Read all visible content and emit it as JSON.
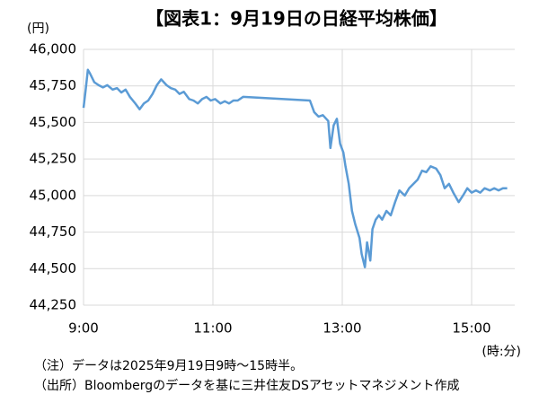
{
  "chart_data": {
    "type": "line",
    "title": "【図表1：9月19日の日経平均株価】",
    "y_unit": "(円)",
    "x_label": "(時:分)",
    "notes": [
      "（注）データは2025年9月19日9時～15時半。",
      "（出所）Bloombergのデータを基に三井住友DSアセットマネジメント作成"
    ],
    "x": [
      540,
      542,
      544,
      546,
      550,
      554,
      558,
      562,
      567,
      571,
      575,
      579,
      583,
      588,
      592,
      596,
      600,
      604,
      608,
      612,
      617,
      621,
      625,
      629,
      633,
      638,
      642,
      646,
      650,
      654,
      658,
      662,
      667,
      671,
      675,
      679,
      683,
      688,
      750,
      754,
      758,
      762,
      767,
      769,
      772,
      775,
      778,
      781,
      783,
      786,
      789,
      792,
      796,
      798,
      801,
      803,
      806,
      808,
      811,
      814,
      817,
      821,
      825,
      829,
      833,
      838,
      842,
      846,
      850,
      854,
      858,
      862,
      867,
      871,
      875,
      879,
      883,
      888,
      892,
      896,
      900,
      904,
      908,
      912,
      917,
      921,
      925,
      929,
      933
    ],
    "series": [
      {
        "name": "日経平均株価",
        "color": "#5b9bd5",
        "values": [
          45600,
          45725,
          45860,
          45835,
          45775,
          45755,
          45740,
          45755,
          45725,
          45735,
          45705,
          45725,
          45675,
          45630,
          45590,
          45630,
          45650,
          45695,
          45755,
          45795,
          45755,
          45735,
          45725,
          45695,
          45710,
          45660,
          45650,
          45630,
          45660,
          45675,
          45650,
          45660,
          45630,
          45645,
          45630,
          45650,
          45650,
          45675,
          45650,
          45570,
          45540,
          45550,
          45510,
          45325,
          45480,
          45525,
          45355,
          45295,
          45200,
          45080,
          44895,
          44805,
          44710,
          44600,
          44510,
          44680,
          44555,
          44770,
          44835,
          44865,
          44835,
          44895,
          44865,
          44955,
          45035,
          45000,
          45050,
          45080,
          45110,
          45170,
          45160,
          45200,
          45185,
          45140,
          45050,
          45080,
          45020,
          44955,
          45000,
          45050,
          45020,
          45035,
          45020,
          45050,
          45035,
          45050,
          45035,
          45050,
          45050
        ]
      }
    ],
    "xlim": [
      540,
      940
    ],
    "xticks": [
      {
        "value": 540,
        "label": "9:00"
      },
      {
        "value": 660,
        "label": "11:00"
      },
      {
        "value": 780,
        "label": "13:00"
      },
      {
        "value": 900,
        "label": "15:00"
      }
    ],
    "ylim": [
      44250,
      46000
    ],
    "yticks": [
      {
        "value": 44250,
        "label": "44,250"
      },
      {
        "value": 44500,
        "label": "44,500"
      },
      {
        "value": 44750,
        "label": "44,750"
      },
      {
        "value": 45000,
        "label": "45,000"
      },
      {
        "value": 45250,
        "label": "45,250"
      },
      {
        "value": 45500,
        "label": "45,500"
      },
      {
        "value": 45750,
        "label": "45,750"
      },
      {
        "value": 46000,
        "label": "46,000"
      }
    ],
    "grid": true
  }
}
